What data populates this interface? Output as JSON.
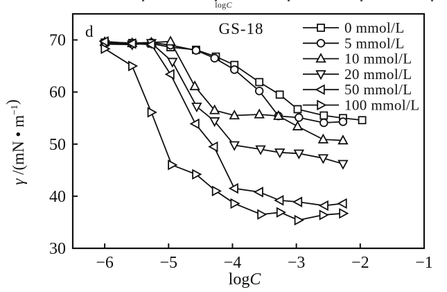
{
  "top_strip": {
    "log": "log",
    "c": "C"
  },
  "chart_data": {
    "type": "line",
    "title": "GS-18",
    "panel_label": "d",
    "xlabel_parts": [
      {
        "t": "log",
        "i": false
      },
      {
        "t": "C",
        "i": true
      }
    ],
    "ylabel_parts": [
      {
        "t": "γ",
        "i": true
      },
      {
        "t": " /(mN ",
        "i": false
      },
      {
        "t": "•",
        "i": false
      },
      {
        "t": " m",
        "i": false
      },
      {
        "t": "−1",
        "sup": true
      },
      {
        "t": ")",
        "i": false
      }
    ],
    "xlim": [
      -6.5,
      -1
    ],
    "ylim": [
      30,
      75
    ],
    "x_tick_values": [
      -6,
      -5,
      -4,
      -3,
      -2,
      -1
    ],
    "x_tick_labels": [
      "−6",
      "−5",
      "−4",
      "−3",
      "−2",
      "−1"
    ],
    "y_tick_values": [
      30,
      40,
      50,
      60,
      70
    ],
    "y_tick_labels": [
      "30",
      "40",
      "50",
      "60",
      "70"
    ],
    "grid": false,
    "legend_position": "top-right",
    "line_color": "#111111",
    "marker_fill": "#ffffff",
    "series": [
      {
        "name": "0 mmol/L",
        "marker": "square",
        "points": [
          [
            -6.0,
            69.5
          ],
          [
            -5.57,
            69.4
          ],
          [
            -5.27,
            69.3
          ],
          [
            -4.97,
            68.6
          ],
          [
            -4.57,
            68.1
          ],
          [
            -4.26,
            66.8
          ],
          [
            -3.97,
            65.2
          ],
          [
            -3.58,
            61.9
          ],
          [
            -3.26,
            59.5
          ],
          [
            -2.98,
            56.7
          ],
          [
            -2.57,
            55.5
          ],
          [
            -2.27,
            55.0
          ],
          [
            -1.97,
            54.6
          ]
        ]
      },
      {
        "name": "5 mmol/L",
        "marker": "circle",
        "points": [
          [
            -6.0,
            69.3
          ],
          [
            -5.57,
            69.2
          ],
          [
            -5.27,
            69.5
          ],
          [
            -4.97,
            69.0
          ],
          [
            -4.57,
            68.0
          ],
          [
            -4.28,
            66.5
          ],
          [
            -3.97,
            64.3
          ],
          [
            -3.58,
            60.2
          ],
          [
            -3.28,
            55.4
          ],
          [
            -2.96,
            55.1
          ],
          [
            -2.57,
            54.1
          ],
          [
            -2.27,
            54.3
          ]
        ]
      },
      {
        "name": "10 mmol/L",
        "marker": "triangle-up",
        "points": [
          [
            -6.0,
            69.6
          ],
          [
            -5.57,
            69.4
          ],
          [
            -5.27,
            69.5
          ],
          [
            -4.97,
            69.7
          ],
          [
            -4.59,
            61.1
          ],
          [
            -4.28,
            56.5
          ],
          [
            -3.97,
            55.5
          ],
          [
            -3.58,
            55.7
          ],
          [
            -3.28,
            55.4
          ],
          [
            -2.98,
            53.4
          ],
          [
            -2.58,
            50.9
          ],
          [
            -2.27,
            50.7
          ]
        ]
      },
      {
        "name": "20 mmol/L",
        "marker": "triangle-down",
        "points": [
          [
            -6.0,
            69.2
          ],
          [
            -5.57,
            69.1
          ],
          [
            -5.27,
            69.4
          ],
          [
            -4.94,
            65.8
          ],
          [
            -4.56,
            57.2
          ],
          [
            -4.28,
            54.4
          ],
          [
            -3.97,
            49.8
          ],
          [
            -3.56,
            49.0
          ],
          [
            -3.26,
            48.4
          ],
          [
            -2.96,
            48.2
          ],
          [
            -2.58,
            47.3
          ],
          [
            -2.27,
            46.2
          ]
        ]
      },
      {
        "name": "50 mmol/L",
        "marker": "triangle-left",
        "points": [
          [
            -6.0,
            69.7
          ],
          [
            -5.57,
            69.3
          ],
          [
            -5.27,
            69.1
          ],
          [
            -4.97,
            63.4
          ],
          [
            -4.58,
            53.9
          ],
          [
            -4.29,
            49.5
          ],
          [
            -3.97,
            41.5
          ],
          [
            -3.58,
            40.8
          ],
          [
            -3.26,
            39.2
          ],
          [
            -2.97,
            38.9
          ],
          [
            -2.56,
            38.2
          ],
          [
            -2.27,
            38.6
          ]
        ]
      },
      {
        "name": "100 mmol/L",
        "marker": "triangle-right",
        "points": [
          [
            -6.0,
            68.3
          ],
          [
            -5.57,
            65.0
          ],
          [
            -5.27,
            56.1
          ],
          [
            -4.95,
            46.0
          ],
          [
            -4.57,
            44.2
          ],
          [
            -4.26,
            41.0
          ],
          [
            -3.97,
            38.6
          ],
          [
            -3.55,
            36.5
          ],
          [
            -3.25,
            36.9
          ],
          [
            -2.97,
            35.4
          ],
          [
            -2.58,
            36.4
          ],
          [
            -2.27,
            36.7
          ]
        ]
      }
    ]
  }
}
